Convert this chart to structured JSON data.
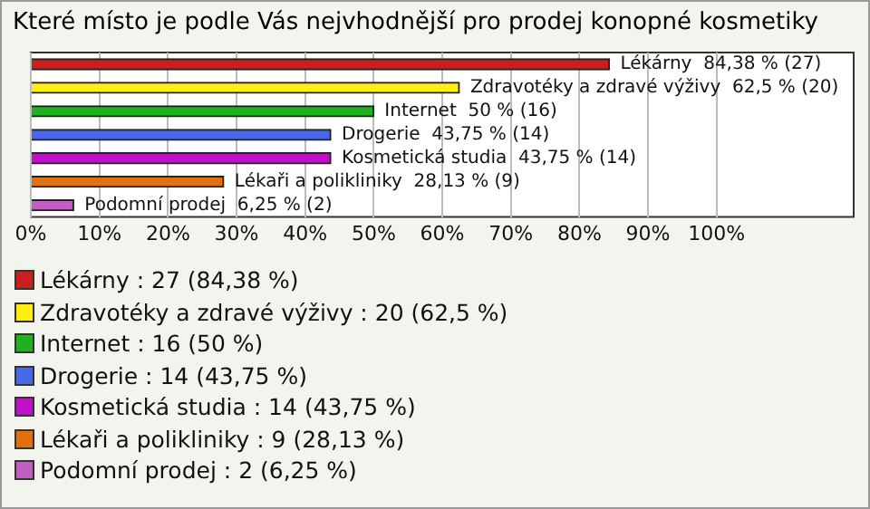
{
  "chart_data": {
    "type": "bar",
    "orientation": "horizontal",
    "title": "Které místo je podle Vás nejvhodnější pro prodej konopné kosmetiky",
    "categories": [
      "Lékárny",
      "Zdravotéky a zdravé výživy",
      "Internet",
      "Drogerie",
      "Kosmetická studia",
      "Lékaři a polikliniky",
      "Podomní prodej"
    ],
    "values": [
      84.38,
      62.5,
      50,
      43.75,
      43.75,
      28.13,
      6.25
    ],
    "colors": [
      "#c8201a",
      "#ffee10",
      "#20b020",
      "#4868e8",
      "#c010c8",
      "#e07010",
      "#c060c0"
    ],
    "value_labels": [
      "84,38 % (27)",
      "62,5 % (20)",
      "50 % (16)",
      "43,75 % (14)",
      "43,75 % (14)",
      "28,13 % (9)",
      "6,25 % (2)"
    ],
    "xlim": [
      0,
      120
    ],
    "xticks": [
      {
        "value": 0,
        "label": "0%"
      },
      {
        "value": 10,
        "label": "10%"
      },
      {
        "value": 20,
        "label": "20%"
      },
      {
        "value": 30,
        "label": "30%"
      },
      {
        "value": 40,
        "label": "40%"
      },
      {
        "value": 50,
        "label": "50%"
      },
      {
        "value": 60,
        "label": "60%"
      },
      {
        "value": 70,
        "label": "70%"
      },
      {
        "value": 80,
        "label": "80%"
      },
      {
        "value": 90,
        "label": "90%"
      },
      {
        "value": 100,
        "label": "100%"
      }
    ],
    "grid": "x",
    "annotations": [
      "Lékárny : 27 (84,38 %)",
      "Zdravotéky a zdravé výživy : 20 (62,5 %)",
      "Internet : 16 (50 %)",
      "Drogerie : 14 (43,75 %)",
      "Kosmetická studia : 14 (43,75 %)",
      "Lékaři a polikliniky : 9 (28,13 %)",
      "Podomní prodej : 2 (6,25 %)"
    ]
  }
}
